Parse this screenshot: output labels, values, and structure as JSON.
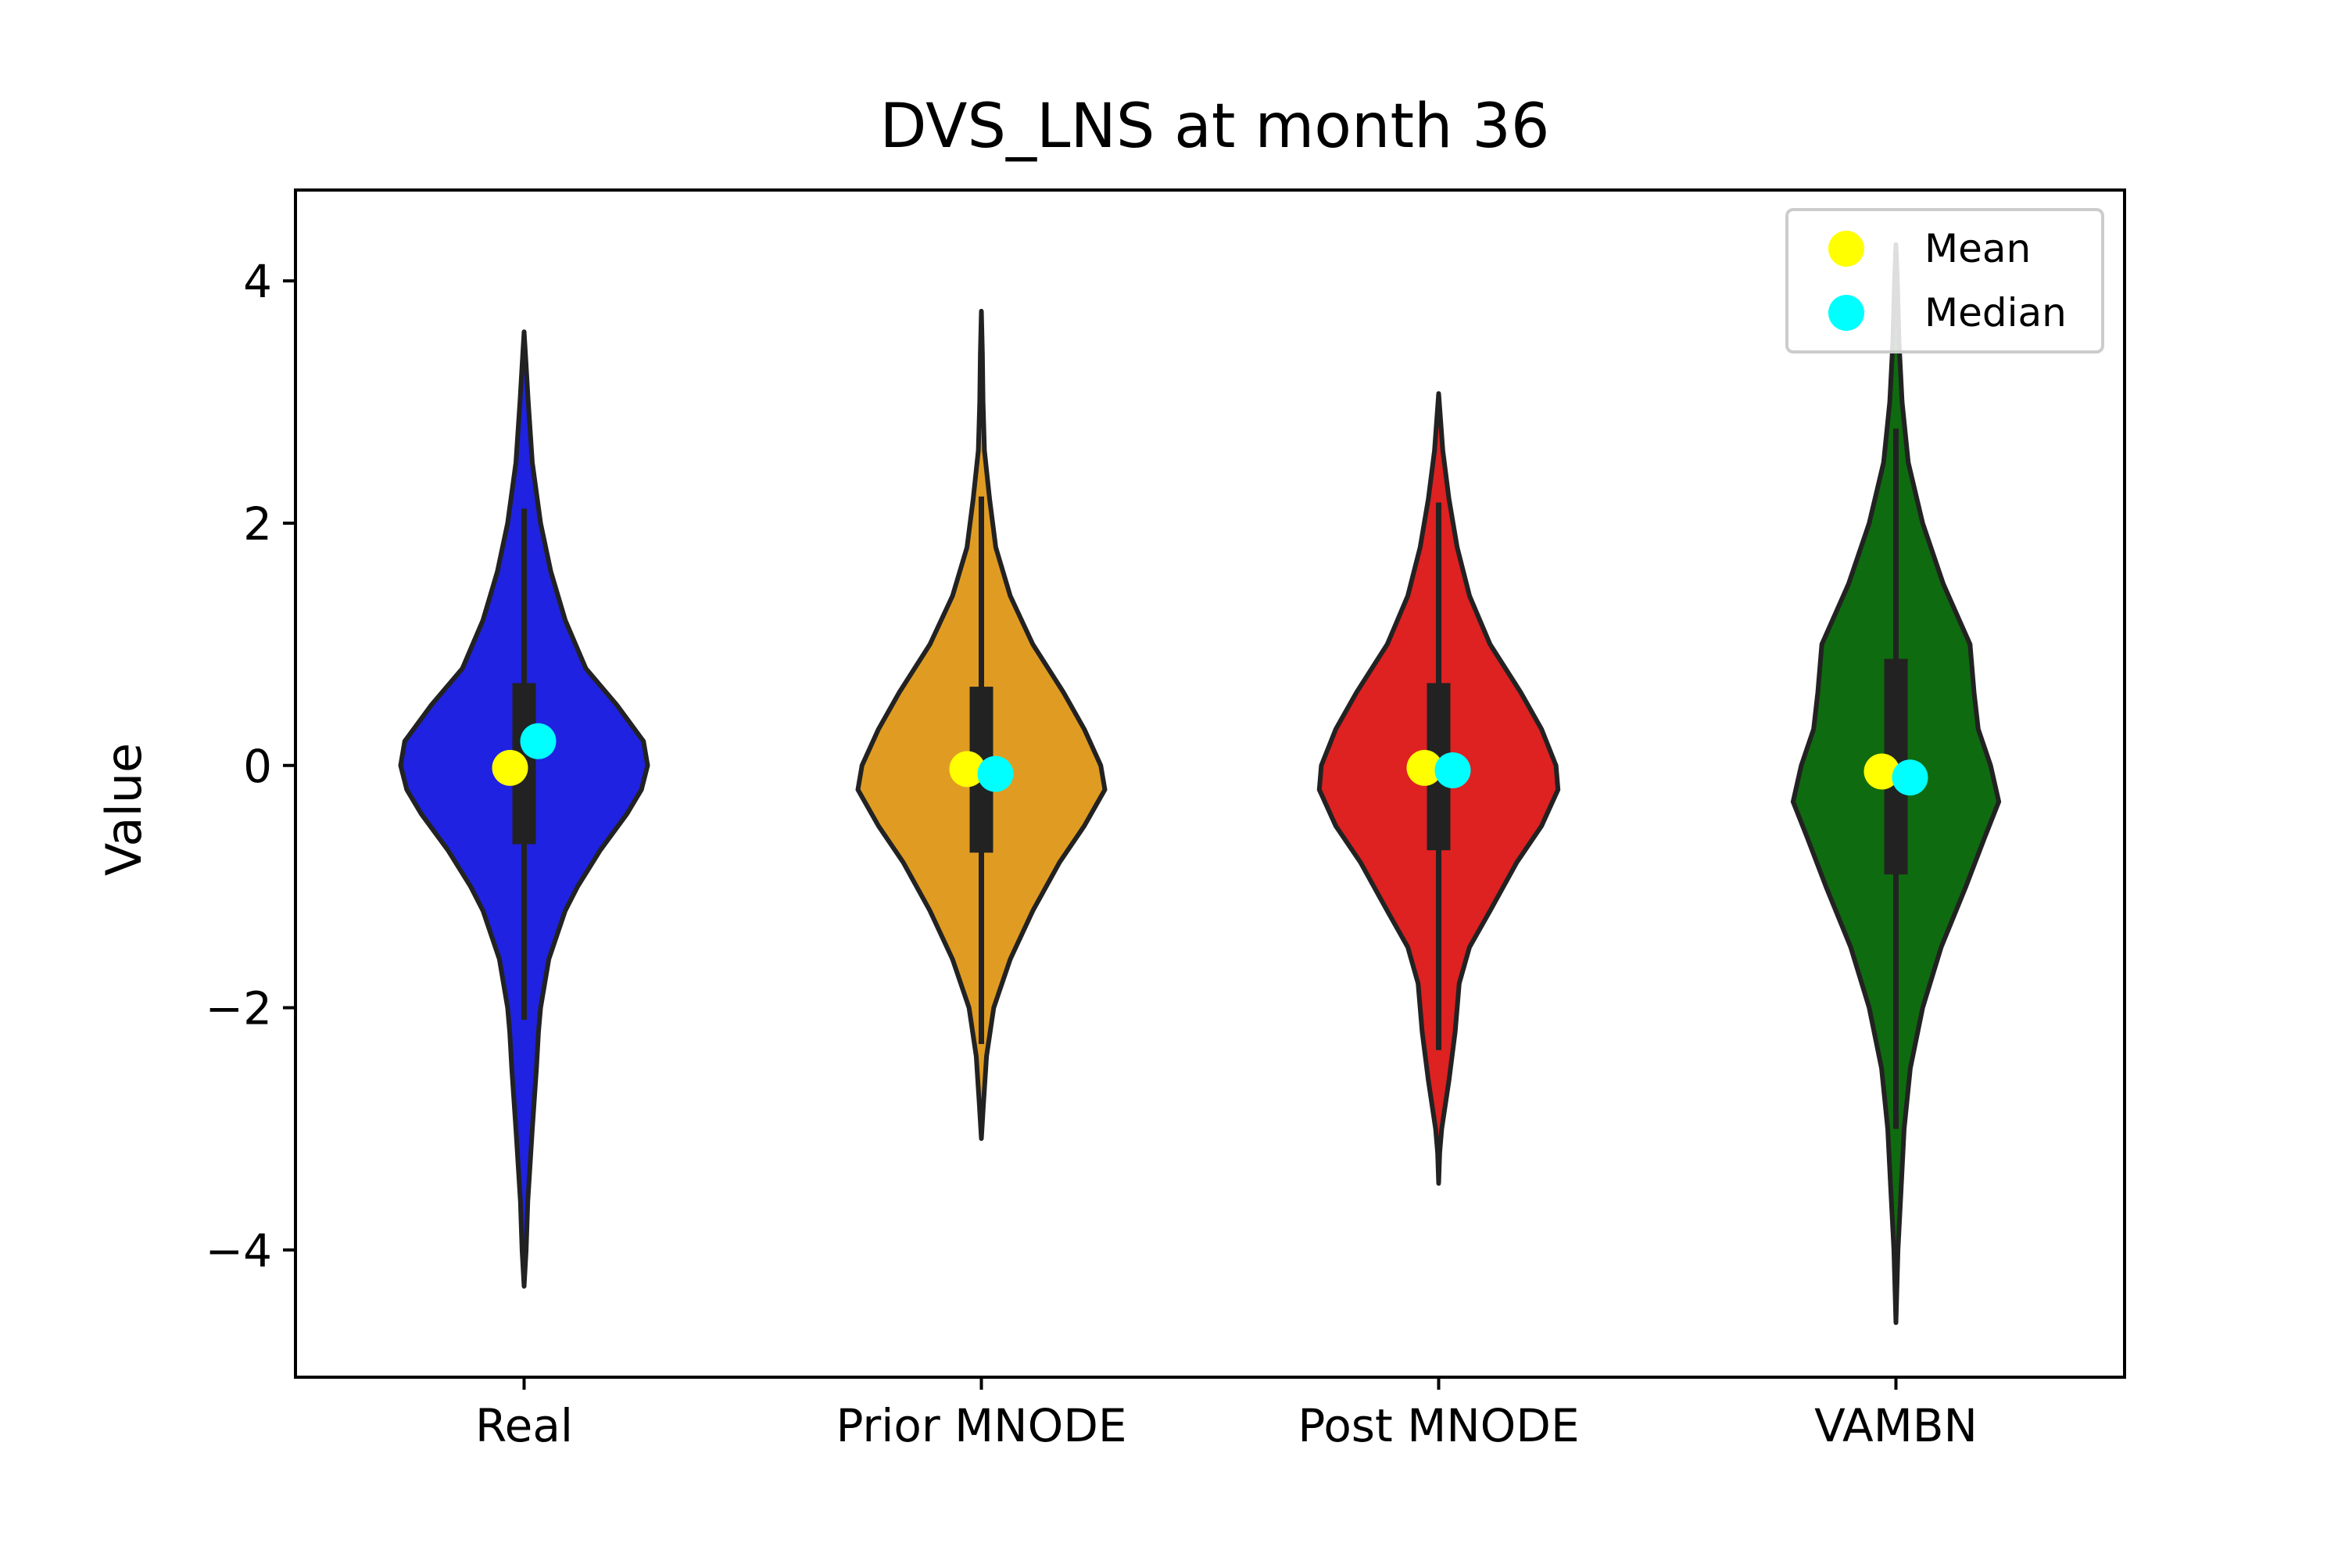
{
  "chart_data": {
    "type": "violin",
    "title": "DVS_LNS at month 36",
    "xlabel": "",
    "ylabel": "Value",
    "ylim": [
      -5.05,
      4.75
    ],
    "yticks": [
      -4,
      -2,
      0,
      2,
      4
    ],
    "ytick_labels": [
      "−4",
      "−2",
      "0",
      "2",
      "4"
    ],
    "grid": false,
    "legend": {
      "position": "top-right",
      "entries": [
        {
          "label": "Mean",
          "color": "#ffff00"
        },
        {
          "label": "Median",
          "color": "#00ffff"
        }
      ]
    },
    "categories": [
      "Real",
      "Prior MNODE",
      "Post MNODE",
      "VAMBN"
    ],
    "violins": [
      {
        "name": "Real",
        "color": "#1f22e0",
        "min": -4.3,
        "max": 3.58,
        "q1": -0.65,
        "q3": 0.68,
        "whisker_low": -2.1,
        "whisker_high": 2.12,
        "mean": -0.02,
        "median": 0.2,
        "profile": [
          [
            -4.3,
            0.0
          ],
          [
            -4.0,
            0.01
          ],
          [
            -3.6,
            0.018
          ],
          [
            -3.0,
            0.04
          ],
          [
            -2.5,
            0.06
          ],
          [
            -2.2,
            0.07
          ],
          [
            -2.0,
            0.08
          ],
          [
            -1.6,
            0.12
          ],
          [
            -1.2,
            0.2
          ],
          [
            -1.0,
            0.26
          ],
          [
            -0.7,
            0.37
          ],
          [
            -0.4,
            0.5
          ],
          [
            -0.2,
            0.57
          ],
          [
            0.0,
            0.6
          ],
          [
            0.2,
            0.58
          ],
          [
            0.5,
            0.45
          ],
          [
            0.8,
            0.3
          ],
          [
            1.2,
            0.2
          ],
          [
            1.6,
            0.13
          ],
          [
            2.0,
            0.08
          ],
          [
            2.5,
            0.04
          ],
          [
            3.0,
            0.02
          ],
          [
            3.3,
            0.01
          ],
          [
            3.58,
            0.0
          ]
        ]
      },
      {
        "name": "Prior MNODE",
        "color": "#e09c22",
        "min": -3.08,
        "max": 3.75,
        "q1": -0.72,
        "q3": 0.65,
        "whisker_low": -2.3,
        "whisker_high": 2.22,
        "mean": -0.03,
        "median": -0.07,
        "profile": [
          [
            -3.08,
            0.0
          ],
          [
            -2.8,
            0.01
          ],
          [
            -2.4,
            0.025
          ],
          [
            -2.0,
            0.06
          ],
          [
            -1.6,
            0.14
          ],
          [
            -1.2,
            0.25
          ],
          [
            -0.8,
            0.38
          ],
          [
            -0.5,
            0.5
          ],
          [
            -0.2,
            0.6
          ],
          [
            0.0,
            0.58
          ],
          [
            0.3,
            0.5
          ],
          [
            0.6,
            0.4
          ],
          [
            1.0,
            0.25
          ],
          [
            1.4,
            0.14
          ],
          [
            1.8,
            0.07
          ],
          [
            2.2,
            0.04
          ],
          [
            2.6,
            0.015
          ],
          [
            3.0,
            0.008
          ],
          [
            3.4,
            0.005
          ],
          [
            3.75,
            0.0
          ]
        ]
      },
      {
        "name": "Post MNODE",
        "color": "#de2121",
        "min": -3.45,
        "max": 3.07,
        "q1": -0.7,
        "q3": 0.68,
        "whisker_low": -2.35,
        "whisker_high": 2.17,
        "mean": -0.02,
        "median": -0.04,
        "profile": [
          [
            -3.45,
            0.0
          ],
          [
            -3.2,
            0.005
          ],
          [
            -3.0,
            0.015
          ],
          [
            -2.6,
            0.05
          ],
          [
            -2.2,
            0.08
          ],
          [
            -1.8,
            0.1
          ],
          [
            -1.5,
            0.15
          ],
          [
            -1.2,
            0.25
          ],
          [
            -0.8,
            0.38
          ],
          [
            -0.5,
            0.5
          ],
          [
            -0.2,
            0.58
          ],
          [
            0.0,
            0.57
          ],
          [
            0.3,
            0.5
          ],
          [
            0.6,
            0.4
          ],
          [
            1.0,
            0.25
          ],
          [
            1.4,
            0.15
          ],
          [
            1.8,
            0.09
          ],
          [
            2.2,
            0.05
          ],
          [
            2.6,
            0.02
          ],
          [
            3.07,
            0.0
          ]
        ]
      },
      {
        "name": "VAMBN",
        "color": "#0f6b0f",
        "min": -4.6,
        "max": 4.3,
        "q1": -0.9,
        "q3": 0.88,
        "whisker_low": -3.0,
        "whisker_high": 2.78,
        "mean": -0.05,
        "median": -0.1,
        "profile": [
          [
            -4.6,
            0.0
          ],
          [
            -4.0,
            0.01
          ],
          [
            -3.5,
            0.025
          ],
          [
            -3.0,
            0.04
          ],
          [
            -2.5,
            0.07
          ],
          [
            -2.0,
            0.13
          ],
          [
            -1.5,
            0.22
          ],
          [
            -1.0,
            0.34
          ],
          [
            -0.6,
            0.43
          ],
          [
            -0.3,
            0.5
          ],
          [
            0.0,
            0.46
          ],
          [
            0.3,
            0.4
          ],
          [
            0.6,
            0.38
          ],
          [
            1.0,
            0.36
          ],
          [
            1.5,
            0.23
          ],
          [
            2.0,
            0.13
          ],
          [
            2.5,
            0.06
          ],
          [
            3.0,
            0.03
          ],
          [
            3.5,
            0.015
          ],
          [
            4.0,
            0.007
          ],
          [
            4.3,
            0.0
          ]
        ]
      }
    ]
  }
}
